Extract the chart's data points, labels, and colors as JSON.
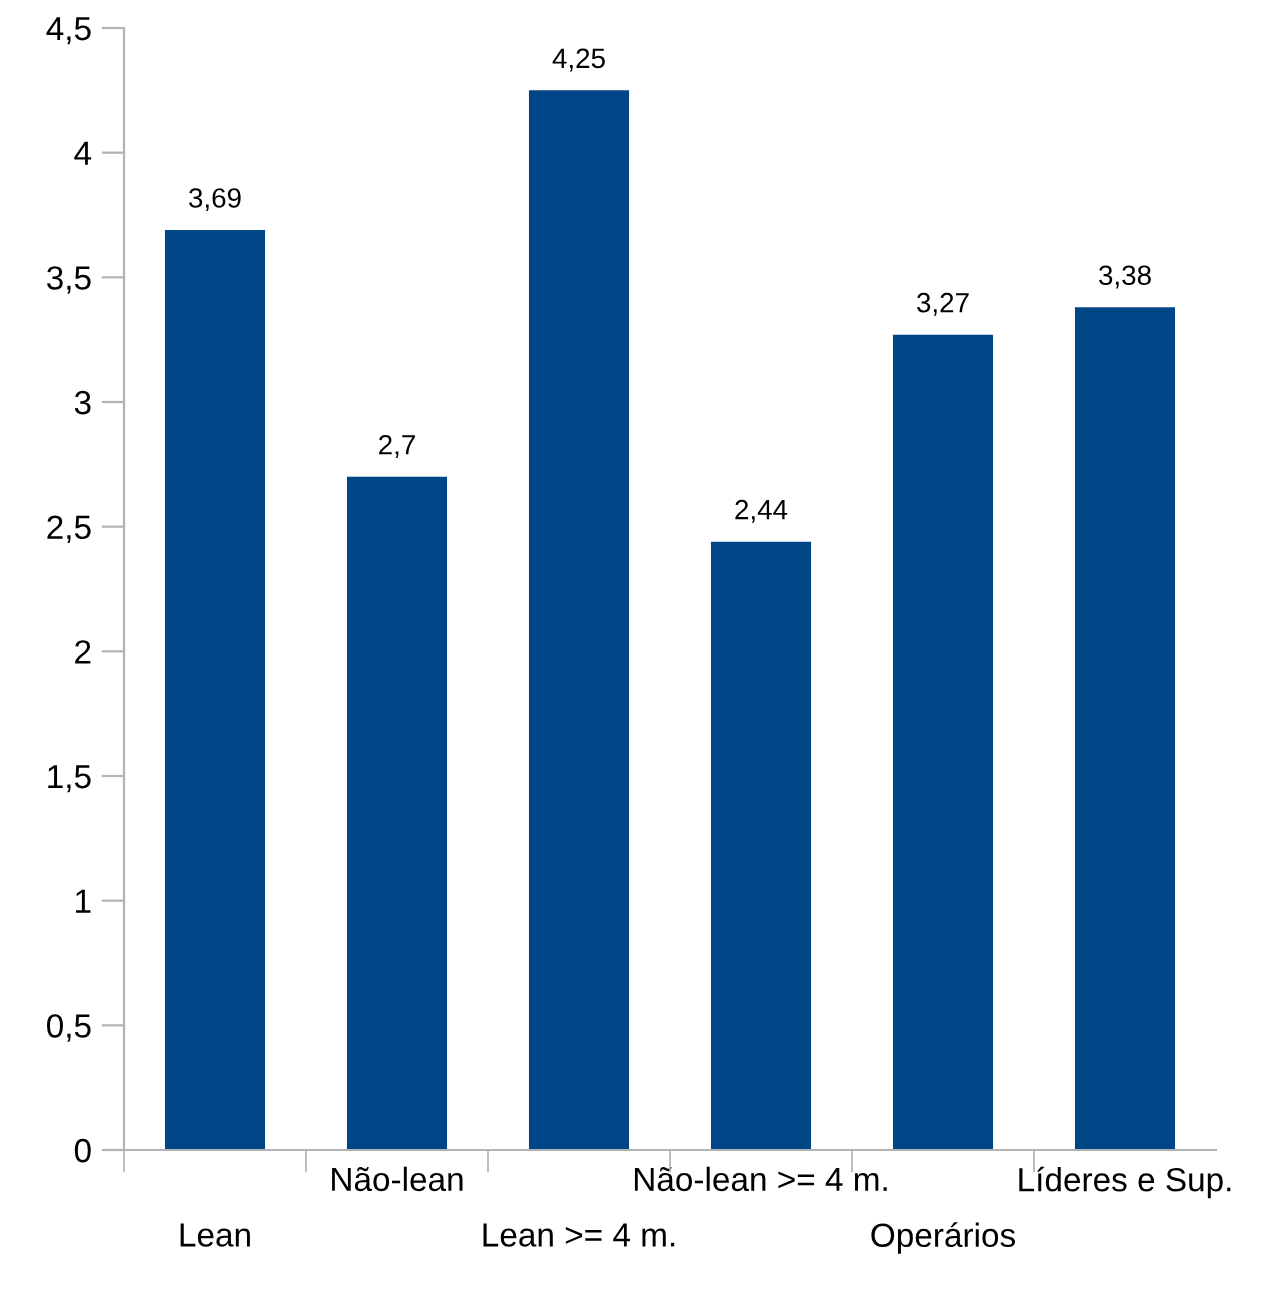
{
  "chart_data": {
    "type": "bar",
    "categories": [
      "Lean",
      "Não-lean",
      "Lean >= 4 m.",
      "Não-lean >= 4 m.",
      "Operários",
      "Líderes e Sup."
    ],
    "values": [
      3.69,
      2.7,
      4.25,
      2.44,
      3.27,
      3.38
    ],
    "value_labels": [
      "3,69",
      "2,7",
      "4,25",
      "2,44",
      "3,27",
      "3,38"
    ],
    "color": "#004586",
    "ylim": [
      0,
      4.5
    ],
    "yticks": [
      0,
      {
        "value": 0.5,
        "label": "0,5"
      },
      1,
      {
        "value": 1.5,
        "label": "1,5"
      },
      2,
      {
        "value": 2.5,
        "label": "2,5"
      },
      3,
      {
        "value": 3.5,
        "label": "3,5"
      },
      4,
      {
        "value": 4.5,
        "label": "4,5"
      }
    ],
    "grid": false
  }
}
